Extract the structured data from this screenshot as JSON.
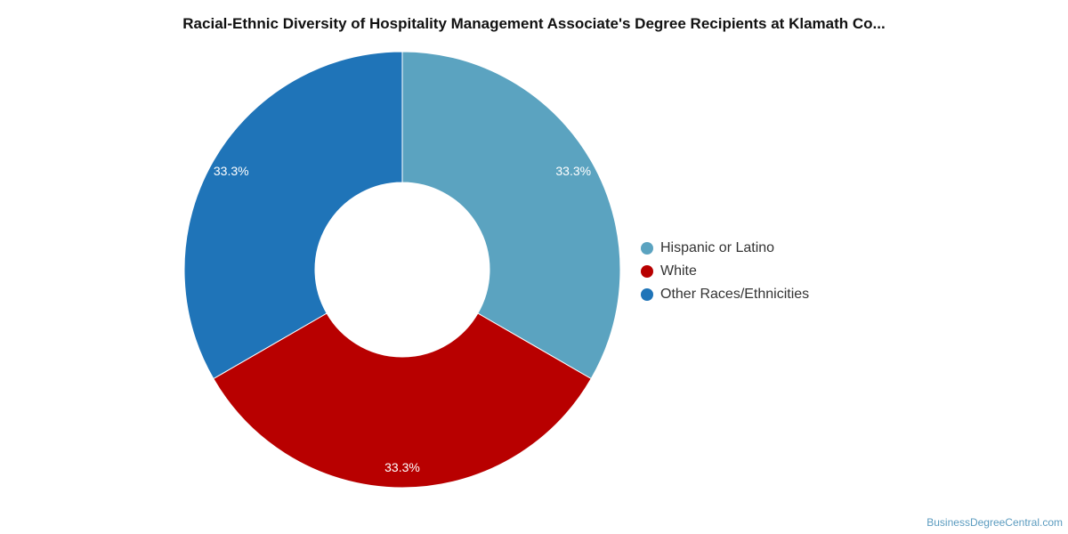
{
  "chart_data": {
    "type": "pie",
    "title": "Racial-Ethnic Diversity of Hospitality Management Associate's Degree Recipients at Klamath Co...",
    "categories": [
      "Hispanic or Latino",
      "White",
      "Other Races/Ethnicities"
    ],
    "values": [
      33.3,
      33.3,
      33.3
    ],
    "data_labels": [
      "33.3%",
      "33.3%",
      "33.3%"
    ],
    "colors": [
      "#5ba3c0",
      "#b80000",
      "#1f74b8"
    ],
    "donut": true,
    "legend_placement": "right"
  },
  "source_credit": "BusinessDegreeCentral.com"
}
